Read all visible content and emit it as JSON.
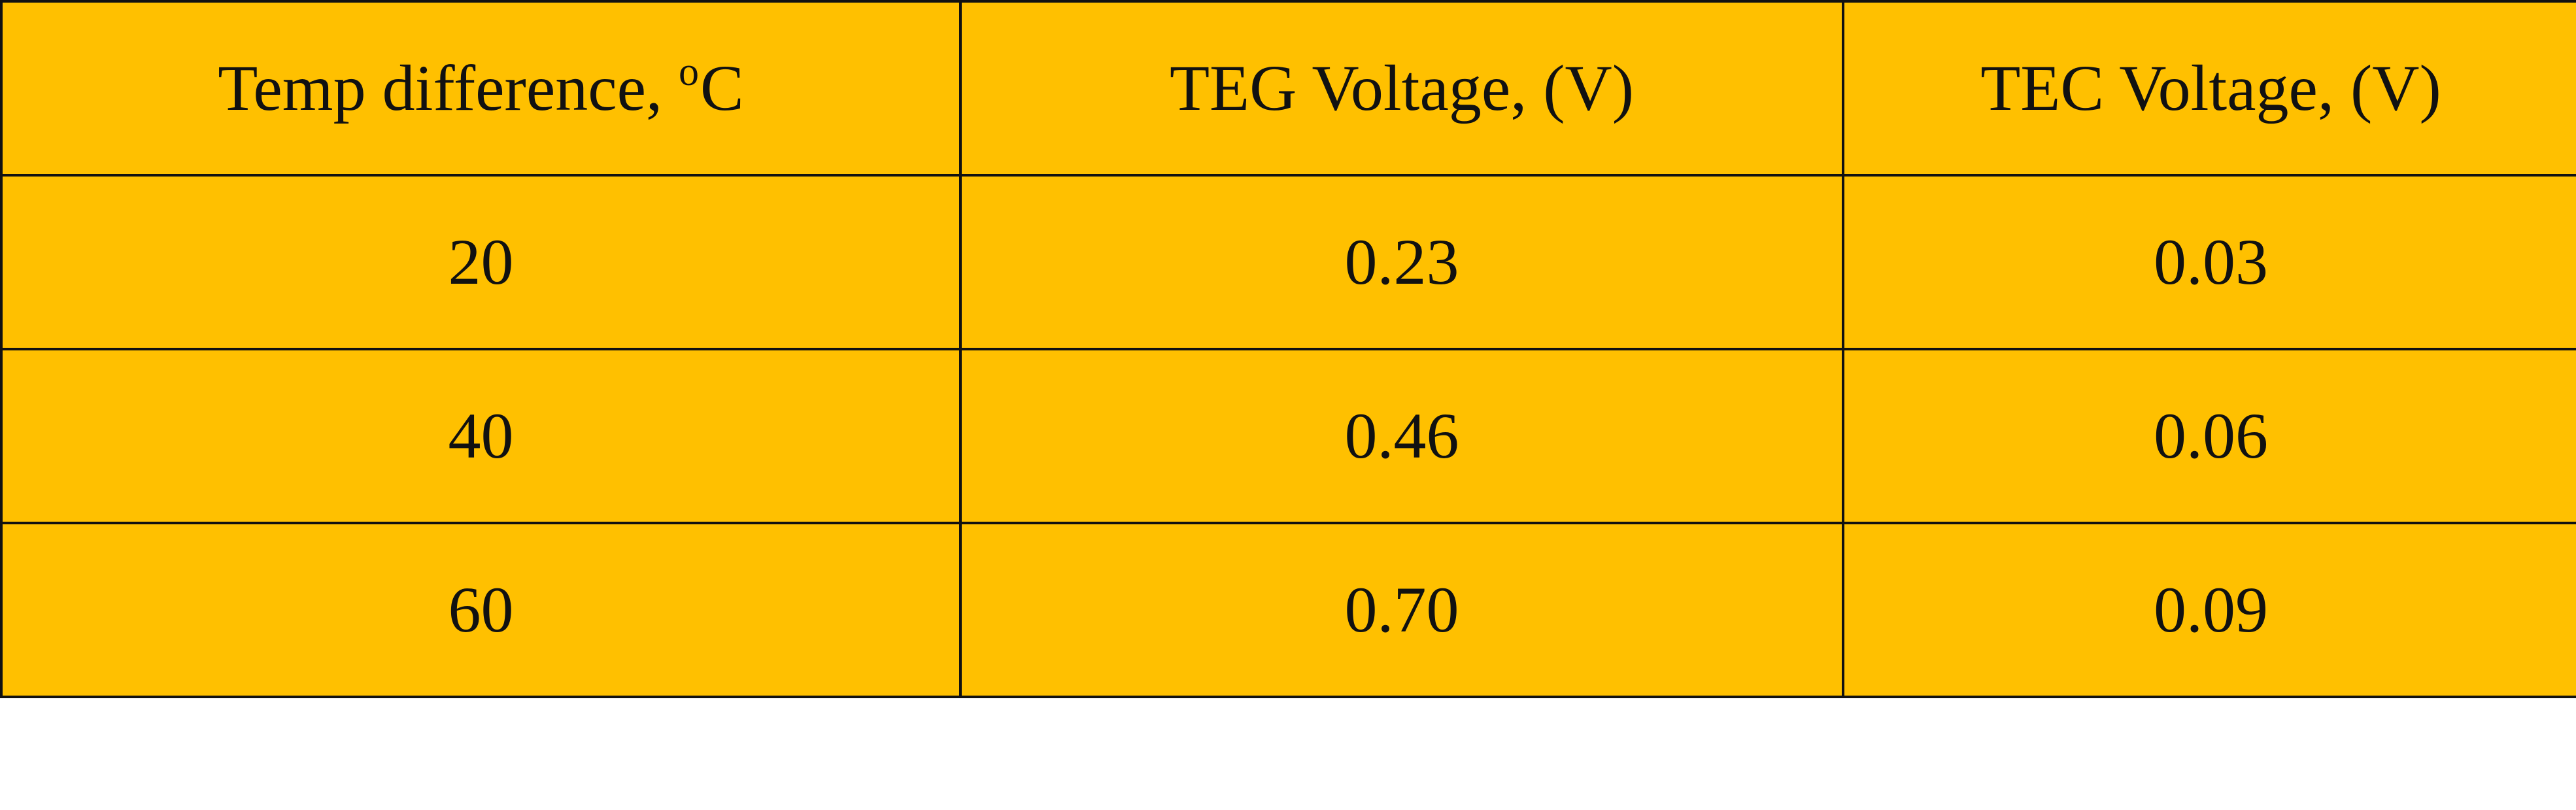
{
  "table": {
    "headers": {
      "temp_prefix": "Temp difference, ",
      "temp_superscript": "o",
      "temp_unit": "C",
      "teg": "TEG Voltage, (V)",
      "tec": "TEC Voltage, (V)"
    },
    "rows": [
      {
        "temp": "20",
        "teg": "0.23",
        "tec": "0.03"
      },
      {
        "temp": "40",
        "teg": "0.46",
        "tec": "0.06"
      },
      {
        "temp": "60",
        "teg": "0.70",
        "tec": "0.09"
      }
    ],
    "colors": {
      "cell_background": "#FFC000",
      "border": "#111111",
      "page_background": "#ffffff"
    }
  }
}
